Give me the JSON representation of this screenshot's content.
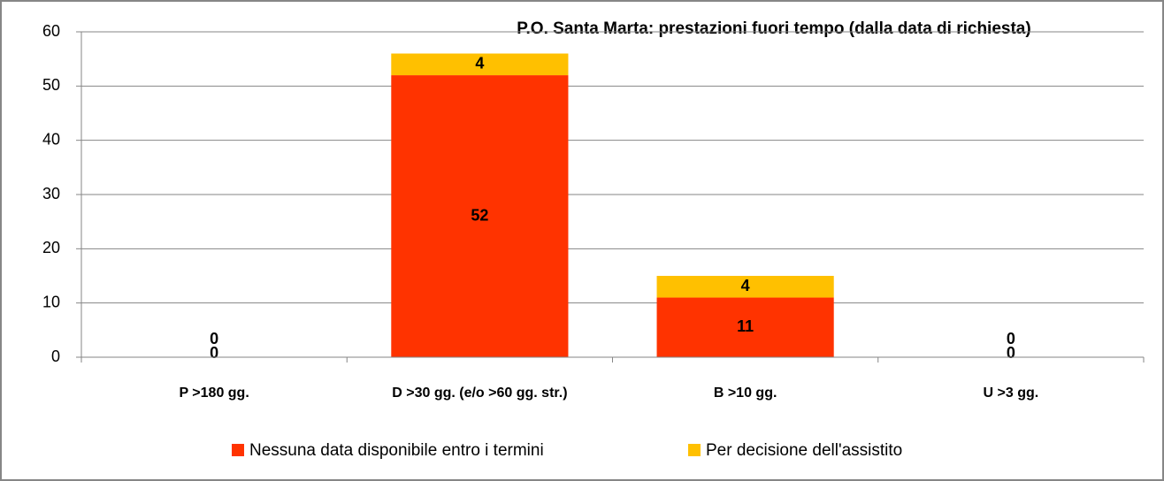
{
  "chart_data": {
    "type": "stacked-bar",
    "title": "P.O. Santa Marta: prestazioni fuori tempo (dalla data di richiesta)",
    "categories": [
      "P >180 gg.",
      "D >30 gg. (e/o >60 gg. str.)",
      "B >10 gg.",
      "U >3 gg."
    ],
    "series": [
      {
        "name": "Nessuna data disponibile entro i termini",
        "color": "#ff3300",
        "values": [
          0,
          52,
          11,
          0
        ]
      },
      {
        "name": "Per decisione dell'assistito",
        "color": "#ffc000",
        "values": [
          0,
          4,
          4,
          0
        ]
      }
    ],
    "ylim": [
      0,
      60
    ],
    "yticks": [
      0,
      10,
      20,
      30,
      40,
      50,
      60
    ],
    "grid": true,
    "legend": "bottom"
  }
}
